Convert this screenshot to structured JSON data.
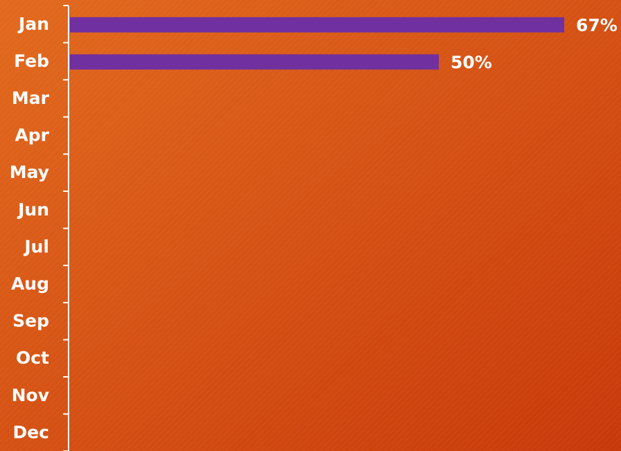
{
  "chart_data": {
    "type": "bar",
    "orientation": "horizontal",
    "categories": [
      "Jan",
      "Feb",
      "Mar",
      "Apr",
      "May",
      "Jun",
      "Jul",
      "Aug",
      "Sep",
      "Oct",
      "Nov",
      "Dec"
    ],
    "values": [
      67,
      50,
      null,
      null,
      null,
      null,
      null,
      null,
      null,
      null,
      null,
      null
    ],
    "value_labels": [
      "67%",
      "50%",
      "",
      "",
      "",
      "",
      "",
      "",
      "",
      "",
      "",
      ""
    ],
    "title": "",
    "xlabel": "",
    "ylabel": "",
    "xlim": [
      0,
      67
    ],
    "grid": false,
    "legend": "none",
    "colors": {
      "bar": "#7030a0",
      "text": "#ffffff",
      "axis": "#ffffff",
      "background_start": "#e26a1e",
      "background_end": "#c8390a"
    }
  }
}
